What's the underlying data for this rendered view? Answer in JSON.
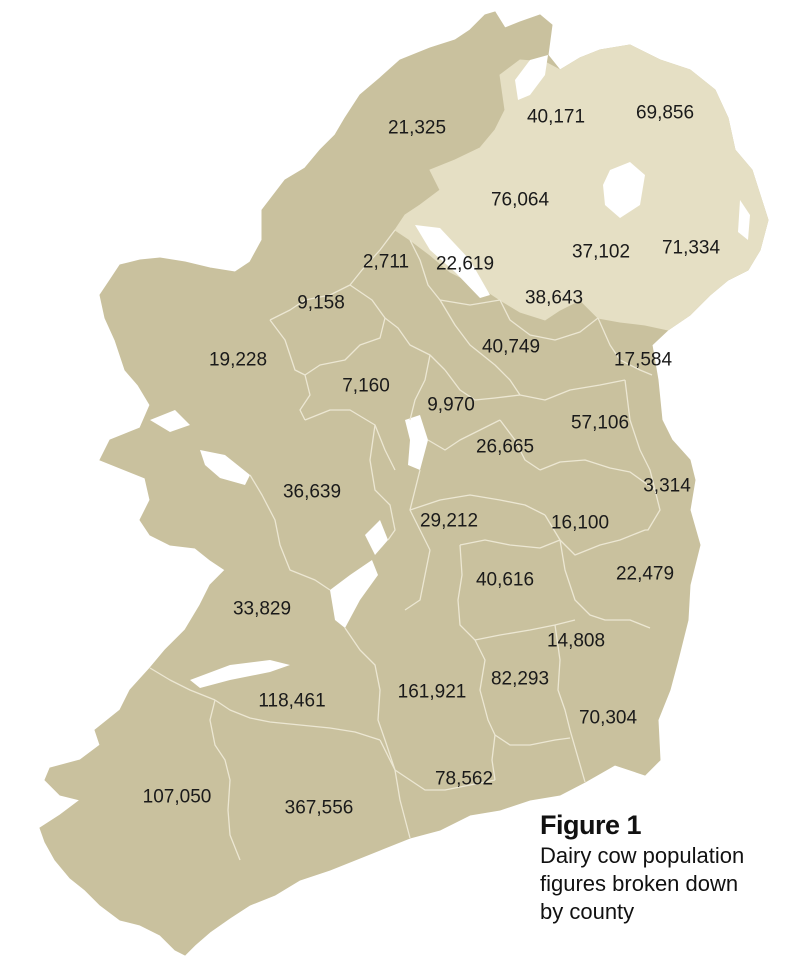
{
  "map": {
    "colors": {
      "republic": "#c9c19e",
      "northern_ireland": "#e5dfc4",
      "county_border": "#ece7d3",
      "background": "#ffffff"
    },
    "county_values": [
      "21,325",
      "40,171",
      "69,856",
      "76,064",
      "37,102",
      "71,334",
      "2,711",
      "22,619",
      "38,643",
      "9,158",
      "19,228",
      "40,749",
      "17,584",
      "7,160",
      "9,970",
      "57,106",
      "26,665",
      "3,314",
      "36,639",
      "29,212",
      "16,100",
      "40,616",
      "22,479",
      "33,829",
      "14,808",
      "118,461",
      "161,921",
      "82,293",
      "70,304",
      "78,562",
      "107,050",
      "367,556"
    ]
  },
  "caption": {
    "title": "Figure 1",
    "text": "Dairy cow population figures broken down by county"
  }
}
